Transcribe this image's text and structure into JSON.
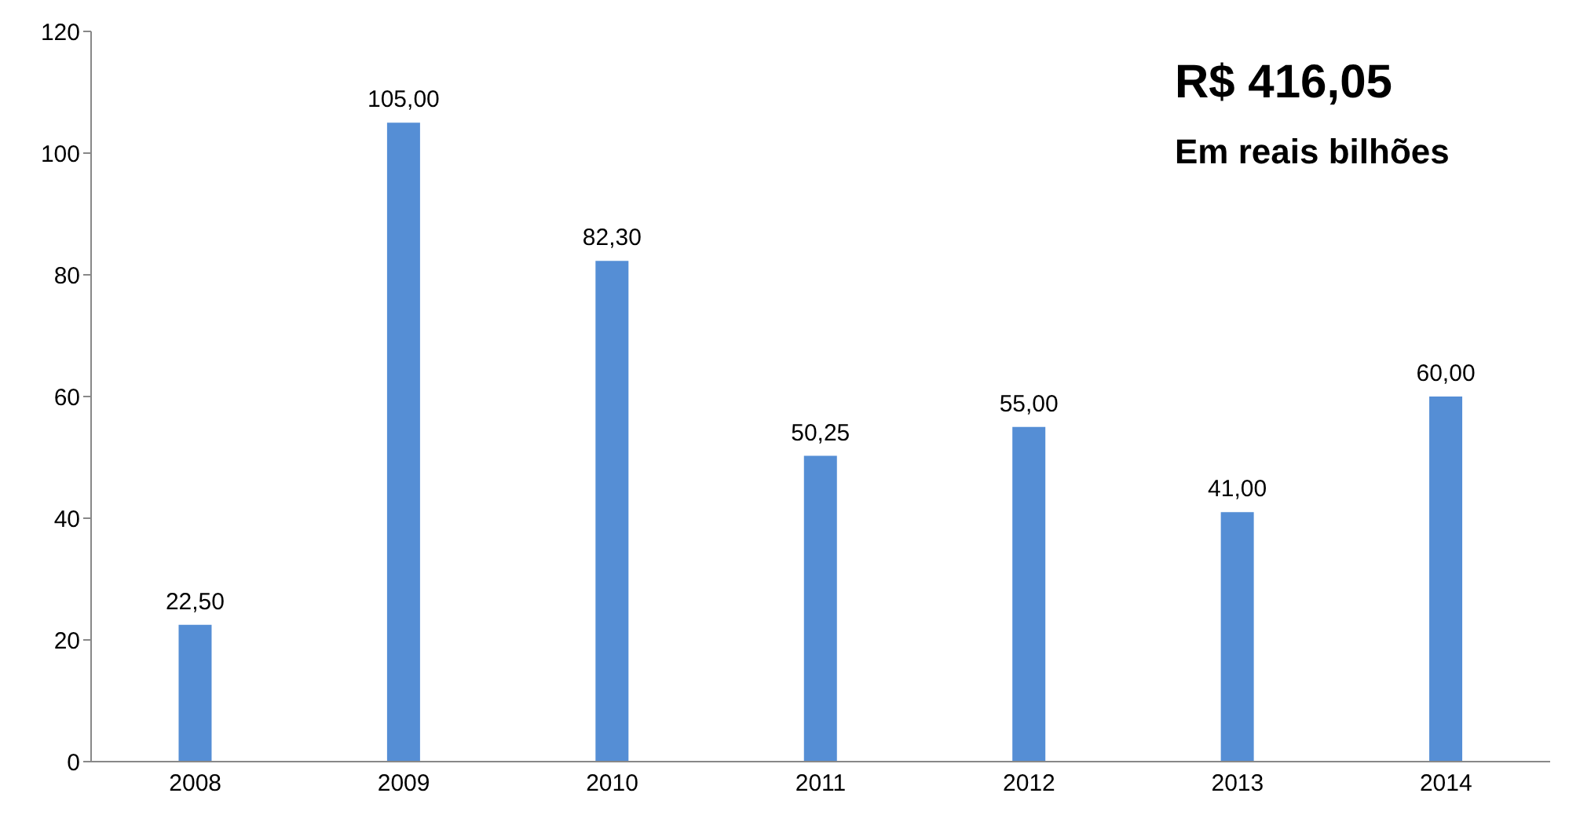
{
  "chart_data": {
    "type": "bar",
    "title": "R$ 416,05",
    "subtitle": "Em reais bilhões",
    "categories": [
      "2008",
      "2009",
      "2010",
      "2011",
      "2012",
      "2013",
      "2014"
    ],
    "values": [
      22.5,
      105,
      82.3,
      50.25,
      55,
      41,
      60
    ],
    "value_labels": [
      "22,50",
      "105,00",
      "82,30",
      "50,25",
      "55,00",
      "41,00",
      "60,00"
    ],
    "color": "#558ed5",
    "ylim": [
      0,
      120
    ],
    "yticks": [
      0,
      20,
      40,
      60,
      80,
      100,
      120
    ]
  }
}
